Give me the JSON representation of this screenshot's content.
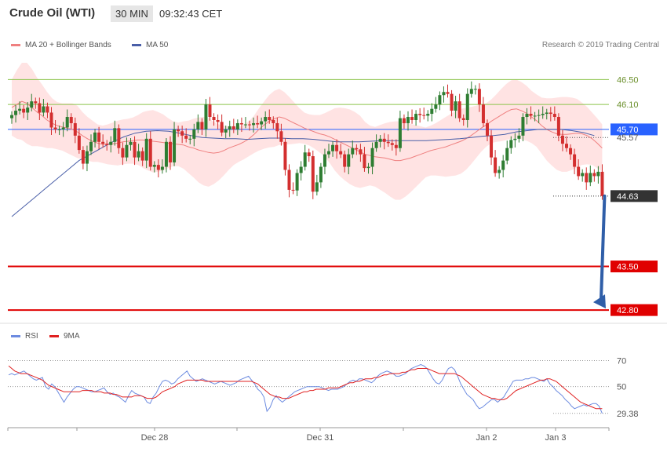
{
  "header": {
    "instrument": "Crude Oil (WTI)",
    "interval": "30 MIN",
    "time": "09:32:43 CET"
  },
  "legend": {
    "ma20_label": "MA 20 + Bollinger Bands",
    "ma50_label": "MA 50",
    "credit": "Research © 2019 Trading Central"
  },
  "rsi_legend": {
    "rsi_label": "RSI",
    "ma_label": "9MA"
  },
  "colors": {
    "up": "#2e7d32",
    "down": "#d32f2f",
    "ma20": "#ef8080",
    "band": "#ffdada",
    "ma50": "#4a5fa8",
    "resistance": "#8bc34a",
    "support": "#e00000",
    "pivot": "#2962ff",
    "arrow": "#2f5ea8",
    "rsi": "#6c8be0",
    "rsi_ma": "#e02020",
    "last_tag": "#333333"
  },
  "chart_data": [
    {
      "type": "candlestick",
      "x_labels": [
        "Dec 28",
        "Dec 31",
        "Jan 2",
        "Jan 3"
      ],
      "ylim": [
        42.6,
        47.5
      ],
      "price_levels": [
        {
          "value": 46.5,
          "label": "46.50",
          "kind": "resistance"
        },
        {
          "value": 46.1,
          "label": "46.10",
          "kind": "resistance"
        },
        {
          "value": 45.7,
          "label": "45.70",
          "kind": "pivot"
        },
        {
          "value": 45.57,
          "label": "45.57",
          "kind": "ma"
        },
        {
          "value": 44.63,
          "label": "44.63",
          "kind": "last"
        },
        {
          "value": 43.5,
          "label": "43.50",
          "kind": "support"
        },
        {
          "value": 42.8,
          "label": "42.80",
          "kind": "support"
        }
      ],
      "forecast_arrow": {
        "from": 44.63,
        "to": 42.8
      },
      "closes": [
        45.93,
        46.0,
        46.03,
        45.97,
        46.05,
        46.15,
        46.12,
        45.97,
        46.07,
        45.97,
        45.73,
        45.7,
        45.7,
        45.73,
        45.9,
        45.8,
        45.6,
        45.37,
        45.15,
        45.35,
        45.5,
        45.65,
        45.5,
        45.47,
        45.45,
        45.5,
        45.72,
        45.4,
        45.25,
        45.45,
        45.5,
        45.25,
        45.35,
        45.2,
        45.55,
        45.1,
        45.13,
        45.05,
        45.1,
        45.5,
        45.17,
        45.7,
        45.67,
        45.6,
        45.55,
        45.55,
        45.7,
        45.82,
        45.7,
        46.1,
        45.9,
        45.85,
        45.82,
        45.65,
        45.7,
        45.75,
        45.7,
        45.8,
        45.78,
        45.78,
        45.77,
        45.8,
        45.78,
        45.83,
        45.9,
        45.85,
        45.8,
        45.67,
        45.5,
        45.05,
        44.73,
        44.72,
        45.0,
        45.1,
        45.33,
        45.27,
        44.7,
        44.85,
        45.1,
        45.3,
        45.35,
        45.45,
        45.35,
        45.3,
        45.1,
        45.3,
        45.4,
        45.38,
        45.3,
        45.08,
        45.1,
        45.4,
        45.5,
        45.55,
        45.5,
        45.48,
        45.45,
        45.4,
        45.88,
        45.8,
        45.9,
        45.85,
        45.95,
        45.93,
        45.92,
        45.95,
        46.03,
        46.1,
        46.25,
        46.3,
        46.27,
        46.0,
        46.15,
        45.88,
        45.85,
        46.27,
        46.35,
        46.35,
        46.1,
        45.8,
        45.6,
        45.25,
        45.0,
        45.05,
        45.2,
        45.4,
        45.53,
        45.55,
        45.6,
        45.9,
        45.95,
        45.92,
        45.92,
        45.93,
        45.95,
        45.97,
        45.95,
        45.9,
        45.6,
        45.47,
        45.4,
        45.3,
        45.1,
        44.95,
        45.0,
        44.85,
        45.0,
        44.95,
        45.02,
        44.63
      ],
      "ma20": [
        46.05,
        46.1,
        46.15,
        46.12,
        46.05,
        45.98,
        45.92,
        45.85,
        45.8,
        45.76,
        45.74,
        45.72,
        45.7,
        45.66,
        45.6,
        45.55,
        45.51,
        45.48,
        45.46,
        45.46,
        45.47,
        45.48,
        45.5,
        45.51,
        45.52,
        45.53,
        45.53,
        45.52,
        45.51,
        45.5,
        45.49,
        45.48,
        45.47,
        45.46,
        45.45,
        45.42,
        45.4,
        45.37,
        45.35,
        45.33,
        45.32,
        45.33,
        45.36,
        45.4,
        45.43,
        45.46,
        45.5,
        45.55,
        45.62,
        45.7,
        45.77,
        45.83,
        45.87,
        45.9,
        45.88,
        45.84,
        45.8,
        45.76,
        45.72,
        45.69,
        45.66,
        45.63,
        45.61,
        45.58,
        45.54,
        45.5,
        45.46,
        45.42,
        45.38,
        45.34,
        45.3,
        45.28,
        45.26,
        45.25,
        45.24,
        45.22,
        45.2,
        45.2,
        45.22,
        45.24,
        45.27,
        45.3,
        45.33,
        45.36,
        45.38,
        45.4,
        45.42,
        45.45,
        45.48,
        45.51,
        45.55,
        45.6,
        45.66,
        45.72,
        45.77,
        45.83,
        45.88,
        45.93,
        45.98,
        46.02,
        46.03,
        46.0,
        45.96,
        45.9,
        45.84,
        45.76,
        45.7,
        45.66,
        45.63,
        45.62,
        45.62,
        45.63,
        45.64,
        45.63,
        45.6,
        45.55,
        45.48,
        45.4
      ],
      "ma20_step": 1.25,
      "ma50": [
        44.3,
        44.45,
        44.6,
        44.75,
        44.9,
        45.05,
        45.2,
        45.3,
        45.4,
        45.5,
        45.58,
        45.64,
        45.67,
        45.68,
        45.67,
        45.64,
        45.6,
        45.57,
        45.56,
        45.55,
        45.55,
        45.54,
        45.55,
        45.56,
        45.56,
        45.55,
        45.55,
        45.54,
        45.52,
        45.5,
        45.5,
        45.5,
        45.51,
        45.52,
        45.52,
        45.52,
        45.52,
        45.52,
        45.53,
        45.54,
        45.55,
        45.57,
        45.59,
        45.6,
        45.62,
        45.66,
        45.68,
        45.7,
        45.7,
        45.7,
        45.68,
        45.65,
        45.6
      ],
      "ma50_step": 2.88,
      "band_width": [
        0.45,
        0.55,
        0.62,
        0.65,
        0.62,
        0.55,
        0.5,
        0.45,
        0.4,
        0.38,
        0.38,
        0.4,
        0.42,
        0.42,
        0.38,
        0.35,
        0.33,
        0.3,
        0.3,
        0.32,
        0.34,
        0.36,
        0.36,
        0.36,
        0.37,
        0.4,
        0.45,
        0.48,
        0.5,
        0.48,
        0.45,
        0.4,
        0.36,
        0.35,
        0.38,
        0.42,
        0.47,
        0.52,
        0.55,
        0.55,
        0.5,
        0.45,
        0.4,
        0.35,
        0.3,
        0.28,
        0.28,
        0.28,
        0.3,
        0.34,
        0.38,
        0.42,
        0.45,
        0.45,
        0.42,
        0.38,
        0.33,
        0.28,
        0.25,
        0.25,
        0.27,
        0.3,
        0.35,
        0.42,
        0.5,
        0.55,
        0.58,
        0.6,
        0.6,
        0.58,
        0.52,
        0.48,
        0.48,
        0.52,
        0.56,
        0.6,
        0.63,
        0.63,
        0.6,
        0.55,
        0.5,
        0.45,
        0.4,
        0.4,
        0.42,
        0.45,
        0.48,
        0.5,
        0.52,
        0.52,
        0.5,
        0.46,
        0.42,
        0.38,
        0.35,
        0.35,
        0.38,
        0.42,
        0.45,
        0.47,
        0.47,
        0.46,
        0.44,
        0.42,
        0.42,
        0.45,
        0.5,
        0.54,
        0.58,
        0.6,
        0.6,
        0.58,
        0.55,
        0.5,
        0.46,
        0.42,
        0.4,
        0.38
      ]
    },
    {
      "type": "line",
      "title": "RSI",
      "ylim": [
        22,
        80
      ],
      "levels": [
        70,
        50
      ],
      "last_label": "29.38",
      "series": [
        {
          "name": "RSI",
          "step": 1.25,
          "values": [
            59,
            60,
            59,
            60,
            61,
            62,
            60,
            58,
            56,
            55,
            56,
            57,
            50,
            48,
            52,
            50,
            46,
            42,
            38,
            42,
            45,
            48,
            50,
            50,
            49,
            48,
            47,
            46,
            46,
            47,
            48,
            49,
            46,
            44,
            45,
            43,
            42,
            40,
            38,
            43,
            47,
            45,
            44,
            43,
            42,
            38,
            37,
            42,
            45,
            50,
            54,
            55,
            54,
            52,
            53,
            56,
            58,
            60,
            62,
            58,
            56,
            54,
            55,
            56,
            55,
            54,
            53,
            52,
            53,
            54,
            53,
            52,
            51,
            52,
            53,
            55,
            56,
            57,
            58,
            55,
            52,
            48,
            46,
            42,
            31,
            34,
            40,
            43,
            40,
            38,
            40,
            42,
            44,
            46,
            47,
            48,
            49,
            50,
            50,
            50,
            50,
            50,
            49,
            48,
            47,
            48,
            48,
            48,
            49,
            50,
            52,
            54,
            55,
            54,
            56,
            56,
            55,
            54,
            53,
            55,
            58,
            60,
            61,
            62,
            61,
            60,
            58,
            58,
            59,
            60,
            62,
            64,
            65,
            66,
            67,
            66,
            64,
            60,
            56,
            53,
            52,
            55,
            60,
            64,
            65,
            63,
            58,
            52,
            48,
            44,
            42,
            40,
            36,
            33,
            34,
            36,
            38,
            40,
            40,
            38,
            40,
            42,
            46,
            50,
            54,
            55,
            55,
            55,
            56,
            56,
            57,
            57,
            56,
            55,
            54,
            56,
            52,
            50,
            47,
            45,
            43,
            40,
            38,
            35,
            33,
            34,
            35,
            36,
            35,
            36,
            37,
            37,
            35,
            29.38
          ]
        },
        {
          "name": "9MA",
          "step": 1.25,
          "values": [
            66,
            64,
            62,
            61,
            60,
            60,
            60,
            59,
            58,
            57,
            56,
            55,
            53,
            51,
            50,
            49,
            48,
            47,
            46,
            46,
            46,
            46,
            46,
            46,
            47,
            47,
            47,
            47,
            46,
            46,
            46,
            45,
            45,
            45,
            44,
            44,
            43,
            42,
            42,
            42,
            42,
            43,
            43,
            43,
            42,
            41,
            41,
            41,
            42,
            44,
            46,
            47,
            48,
            49,
            50,
            52,
            53,
            54,
            55,
            55,
            55,
            55,
            55,
            55,
            54,
            54,
            54,
            54,
            54,
            54,
            54,
            54,
            54,
            54,
            54,
            54,
            54,
            54,
            54,
            54,
            53,
            52,
            50,
            48,
            46,
            44,
            43,
            42,
            42,
            41,
            41,
            41,
            42,
            43,
            44,
            45,
            46,
            46,
            47,
            47,
            48,
            48,
            48,
            48,
            49,
            49,
            49,
            49,
            50,
            51,
            52,
            53,
            53,
            54,
            54,
            55,
            56,
            56,
            56,
            57,
            57,
            58,
            59,
            59,
            60,
            60,
            60,
            60,
            61,
            61,
            62,
            63,
            63,
            64,
            64,
            64,
            64,
            63,
            62,
            61,
            60,
            60,
            60,
            60,
            60,
            60,
            59,
            58,
            56,
            54,
            52,
            50,
            48,
            46,
            44,
            43,
            42,
            41,
            41,
            40,
            40,
            40,
            41,
            43,
            45,
            47,
            48,
            49,
            50,
            51,
            52,
            53,
            54,
            55,
            55,
            56,
            56,
            55,
            54,
            52,
            50,
            48,
            46,
            44,
            42,
            40,
            38,
            37,
            36,
            35,
            34,
            33,
            33,
            33
          ]
        }
      ]
    }
  ]
}
